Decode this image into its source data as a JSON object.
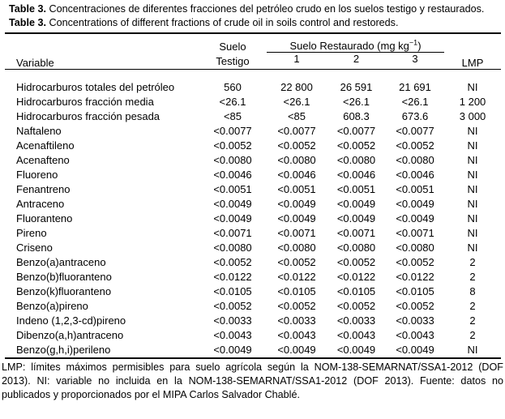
{
  "caption_es": {
    "label": "Table 3.",
    "text": "Concentraciones de diferentes fracciones del petróleo crudo en los suelos testigo y restaurados."
  },
  "caption_en": {
    "label": "Table 3.",
    "text": "Concentrations of different fractions of crude oil in soils control and restoreds."
  },
  "table": {
    "headers": {
      "variable": "Variable",
      "control_line1": "Suelo",
      "control_line2": "Testigo",
      "restored_group": "Suelo Restaurado (mg kg",
      "restored_sup": "−1",
      "restored_close": ")",
      "restored_cols": [
        "1",
        "2",
        "3"
      ],
      "lmp": "LMP"
    },
    "rows": [
      {
        "variable": "Hidrocarburos totales del petróleo",
        "values": [
          "560",
          "22 800",
          "26 591",
          "21 691",
          "NI"
        ]
      },
      {
        "variable": "Hidrocarburos fracción media",
        "values": [
          "<26.1",
          "<26.1",
          "<26.1",
          "<26.1",
          "1 200"
        ]
      },
      {
        "variable": "Hidrocarburos fracción pesada",
        "values": [
          "<85",
          "<85",
          "608.3",
          "673.6",
          "3 000"
        ]
      },
      {
        "variable": "Naftaleno",
        "values": [
          "<0.0077",
          "<0.0077",
          "<0.0077",
          "<0.0077",
          "NI"
        ]
      },
      {
        "variable": "Acenaftileno",
        "values": [
          "<0.0052",
          "<0.0052",
          "<0.0052",
          "<0.0052",
          "NI"
        ]
      },
      {
        "variable": "Acenafteno",
        "values": [
          "<0.0080",
          "<0.0080",
          "<0.0080",
          "<0.0080",
          "NI"
        ]
      },
      {
        "variable": "Fluoreno",
        "values": [
          "<0.0046",
          "<0.0046",
          "<0.0046",
          "<0.0046",
          "NI"
        ]
      },
      {
        "variable": "Fenantreno",
        "values": [
          "<0.0051",
          "<0.0051",
          "<0.0051",
          "<0.0051",
          "NI"
        ]
      },
      {
        "variable": "Antraceno",
        "values": [
          "<0.0049",
          "<0.0049",
          "<0.0049",
          "<0.0049",
          "NI"
        ]
      },
      {
        "variable": "Fluoranteno",
        "values": [
          "<0.0049",
          "<0.0049",
          "<0.0049",
          "<0.0049",
          "NI"
        ]
      },
      {
        "variable": "Pireno",
        "values": [
          "<0.0071",
          "<0.0071",
          "<0.0071",
          "<0.0071",
          "NI"
        ]
      },
      {
        "variable": "Criseno",
        "values": [
          "<0.0080",
          "<0.0080",
          "<0.0080",
          "<0.0080",
          "NI"
        ]
      },
      {
        "variable": "Benzo(a)antraceno",
        "values": [
          "<0.0052",
          "<0.0052",
          "<0.0052",
          "<0.0052",
          "2"
        ]
      },
      {
        "variable": "Benzo(b)fluoranteno",
        "values": [
          "<0.0122",
          "<0.0122",
          "<0.0122",
          "<0.0122",
          "2"
        ]
      },
      {
        "variable": "Benzo(k)fluoranteno",
        "values": [
          "<0.0105",
          "<0.0105",
          "<0.0105",
          "<0.0105",
          "8"
        ]
      },
      {
        "variable": "Benzo(a)pireno",
        "values": [
          "<0.0052",
          "<0.0052",
          "<0.0052",
          "<0.0052",
          "2"
        ]
      },
      {
        "variable": "Indeno (1,2,3-cd)pireno",
        "values": [
          "<0.0033",
          "<0.0033",
          "<0.0033",
          "<0.0033",
          "2"
        ]
      },
      {
        "variable": "Dibenzo(a,h)antraceno",
        "values": [
          "<0.0043",
          "<0.0043",
          "<0.0043",
          "<0.0043",
          "2"
        ]
      },
      {
        "variable": "Benzo(g,h,i)perileno",
        "values": [
          "<0.0049",
          "<0.0049",
          "<0.0049",
          "<0.0049",
          "NI"
        ]
      }
    ]
  },
  "footnote": "LMP: límites máximos permisibles para suelo agrícola según la NOM-138-SEMARNAT/SSA1-2012 (DOF 2013). NI: variable no incluida en la NOM-138-SEMARNAT/SSA1-2012 (DOF 2013). Fuente: datos no publicados y proporcionados por el MIPA Carlos Salvador Chablé."
}
